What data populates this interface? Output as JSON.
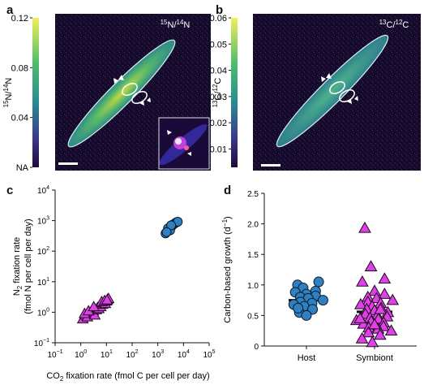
{
  "panels": {
    "a": {
      "letter": "a",
      "overlay_label": "15N/14N",
      "colorbar": {
        "label": "15N/14N",
        "ticks": [
          "0.12",
          "0.08",
          "0.04",
          "NA"
        ],
        "values": [
          0.12,
          0.08,
          0.04,
          0.0
        ]
      },
      "colors": {
        "low": "#2a0a4a",
        "mid": "#2fa08a",
        "high": "#f2ef5a"
      }
    },
    "b": {
      "letter": "b",
      "overlay_label": "13C/12C",
      "colorbar": {
        "label": "13C/12C",
        "ticks": [
          "0.06",
          "0.05",
          "0.04",
          "0.03",
          "0.02",
          "0.01"
        ],
        "values": [
          0.06,
          0.05,
          0.04,
          0.03,
          0.02,
          0.01
        ]
      },
      "colors": {
        "low": "#2a0a4a",
        "mid": "#2fa08a",
        "high": "#f2ef5a"
      }
    },
    "c": {
      "letter": "c"
    },
    "d": {
      "letter": "d"
    }
  },
  "chart_data": [
    {
      "id": "c",
      "type": "scatter",
      "xlabel": "CO2 fixation rate (fmol C per cell per day)",
      "ylabel_line1": "N2 fixation rate",
      "ylabel_line2": "(fmol N per cell per day)",
      "xscale": "log",
      "yscale": "log",
      "xlim": [
        0.1,
        100000
      ],
      "ylim": [
        0.1,
        10000
      ],
      "xticks": [
        {
          "v": 0.1,
          "e": "−1"
        },
        {
          "v": 1,
          "e": "0"
        },
        {
          "v": 10,
          "e": "1"
        },
        {
          "v": 100,
          "e": "2"
        },
        {
          "v": 1000,
          "e": "3"
        },
        {
          "v": 10000,
          "e": "4"
        },
        {
          "v": 100000,
          "e": "5"
        }
      ],
      "yticks": [
        {
          "v": 0.1,
          "e": "−1"
        },
        {
          "v": 1,
          "e": "0"
        },
        {
          "v": 10,
          "e": "1"
        },
        {
          "v": 100,
          "e": "2"
        },
        {
          "v": 1000,
          "e": "3"
        },
        {
          "v": 10000,
          "e": "4"
        }
      ],
      "series": [
        {
          "marker": "circle",
          "color": "#2f7fc1",
          "x": [
            2000,
            2400,
            2800,
            3200,
            3600,
            4000,
            4500,
            5000,
            5500,
            6000,
            2500,
            3000,
            3300,
            2200
          ],
          "y": [
            380,
            450,
            520,
            600,
            680,
            750,
            800,
            850,
            900,
            920,
            560,
            480,
            700,
            420
          ]
        },
        {
          "marker": "triangle",
          "color": "#e040e8",
          "x": [
            1.2,
            1.5,
            1.8,
            2.2,
            2.6,
            3.0,
            3.5,
            4.0,
            4.5,
            5.0,
            5.5,
            6.0,
            7.0,
            8.0,
            9.0,
            10.0,
            11.0,
            12.0,
            1.4,
            2.0,
            3.2,
            6.5,
            8.5,
            10.5
          ],
          "y": [
            0.6,
            0.8,
            0.7,
            0.9,
            1.0,
            1.1,
            0.8,
            1.2,
            1.4,
            1.3,
            1.6,
            1.5,
            1.8,
            2.0,
            1.9,
            2.3,
            2.6,
            2.8,
            0.9,
            1.1,
            1.5,
            2.2,
            2.4,
            2.5
          ]
        }
      ]
    },
    {
      "id": "d",
      "type": "scatter",
      "ylabel": "Carbon-based growth (d−1)",
      "ylim": [
        0,
        2.5
      ],
      "yticks": [
        "0",
        "0.5",
        "1.0",
        "1.5",
        "2.0",
        "2.5"
      ],
      "categories": [
        "Host",
        "Symbiont"
      ],
      "series": [
        {
          "category": "Host",
          "marker": "circle",
          "color": "#2f7fc1",
          "mean": 0.75,
          "values": [
            1.0,
            0.95,
            0.9,
            0.88,
            0.85,
            0.82,
            0.8,
            0.78,
            0.75,
            0.72,
            0.7,
            0.68,
            0.65,
            0.6,
            0.55,
            0.5,
            1.05,
            0.62
          ]
        },
        {
          "category": "Symbiont",
          "marker": "triangle",
          "color": "#e040e8",
          "mean": 0.56,
          "values": [
            1.93,
            1.3,
            1.1,
            1.05,
            0.9,
            0.85,
            0.8,
            0.78,
            0.75,
            0.72,
            0.7,
            0.68,
            0.65,
            0.62,
            0.6,
            0.58,
            0.55,
            0.52,
            0.5,
            0.48,
            0.46,
            0.44,
            0.42,
            0.4,
            0.38,
            0.36,
            0.34,
            0.32,
            0.3,
            0.28,
            0.25,
            0.22,
            0.18,
            0.12,
            0.06,
            0.6,
            0.45,
            0.35
          ]
        }
      ]
    }
  ]
}
